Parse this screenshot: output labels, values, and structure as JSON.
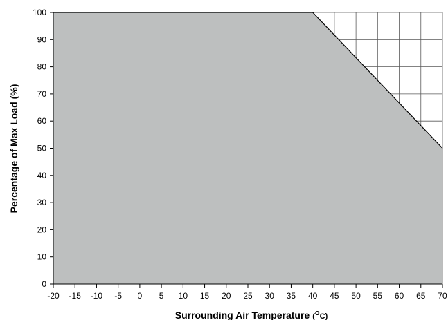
{
  "chart_data": {
    "type": "area",
    "title": "",
    "xlabel": "Surrounding Air Temperature",
    "xlabel_unit_prefix": "(",
    "xlabel_unit_deg": "o",
    "xlabel_unit_suffix": "C)",
    "ylabel": "Percentage of Max Load (%)",
    "xlim": [
      -20,
      70
    ],
    "ylim": [
      0,
      100
    ],
    "x_ticks": [
      -20,
      -15,
      -10,
      -5,
      0,
      5,
      10,
      15,
      20,
      25,
      30,
      35,
      40,
      45,
      50,
      55,
      60,
      65,
      70
    ],
    "y_ticks": [
      0,
      10,
      20,
      30,
      40,
      50,
      60,
      70,
      80,
      90,
      100
    ],
    "grid": true,
    "series": [
      {
        "x": [
          -20,
          40,
          70
        ],
        "y": [
          100,
          100,
          50
        ]
      }
    ],
    "colors": {
      "fill": "#bdbfbf",
      "line": "#000000",
      "grid": "#5a5a5a"
    }
  }
}
